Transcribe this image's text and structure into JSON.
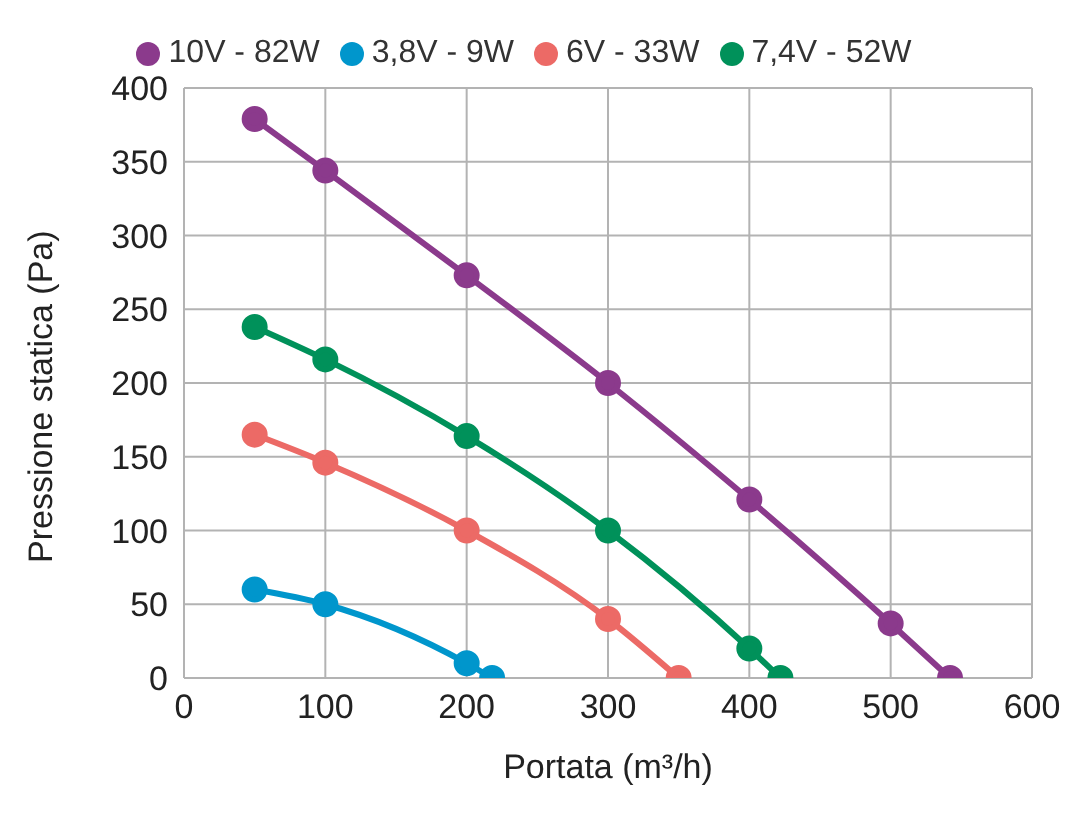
{
  "chart_data": {
    "type": "line",
    "xlabel": "Portata (m³/h)",
    "ylabel": "Pressione statica (Pa)",
    "series": [
      {
        "name": "3,8V - 9W",
        "color": "#0096cc",
        "x": [
          50,
          100,
          200,
          218
        ],
        "values": [
          60,
          50,
          10,
          0
        ]
      },
      {
        "name": "6V - 33W",
        "color": "#ec6a66",
        "x": [
          50,
          100,
          200,
          300,
          350
        ],
        "values": [
          165,
          146,
          100,
          40,
          0
        ]
      },
      {
        "name": "7,4V - 52W",
        "color": "#00915a",
        "x": [
          50,
          100,
          200,
          300,
          400,
          422
        ],
        "values": [
          238,
          216,
          164,
          100,
          20,
          0
        ]
      },
      {
        "name": "10V - 82W",
        "color": "#8b3a8c",
        "x": [
          50,
          100,
          200,
          300,
          400,
          500,
          542
        ],
        "values": [
          379,
          344,
          273,
          200,
          121,
          37,
          0
        ]
      }
    ],
    "xlim": [
      0,
      600
    ],
    "xticks": [
      0,
      100,
      200,
      300,
      400,
      500,
      600
    ],
    "ylim": [
      0,
      400
    ],
    "yticks": [
      0,
      50,
      100,
      150,
      200,
      250,
      300,
      350,
      400
    ],
    "grid": true,
    "legend": "top",
    "marker": "circle",
    "line_style": "solid"
  }
}
